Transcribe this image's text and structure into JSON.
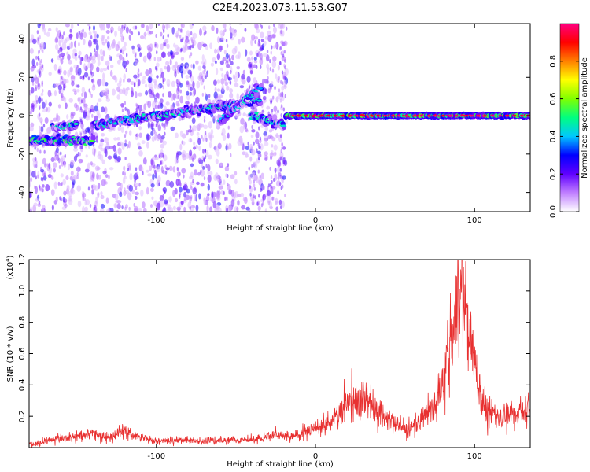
{
  "figure": {
    "title": "C2E4.2023.073.11.53.G07"
  },
  "chart_data": [
    {
      "type": "heatmap",
      "xlabel": "Height of straight line (km)",
      "ylabel": "Frequency (Hz)",
      "xlim": [
        -180,
        135
      ],
      "ylim": [
        -50,
        48
      ],
      "x_ticks": [
        -100,
        0,
        100
      ],
      "y_ticks": [
        -40,
        -20,
        0,
        20,
        40
      ],
      "colorbar": {
        "label": "Normalized spectral amplitude",
        "range": [
          0.0,
          1.0
        ],
        "ticks": [
          0.0,
          0.2,
          0.4,
          0.6,
          0.8
        ],
        "colormap": [
          "#ffffff",
          "#c07fff",
          "#6000ff",
          "#0000ff",
          "#00c8ff",
          "#00ff80",
          "#80ff00",
          "#ffff00",
          "#ff8000",
          "#ff0000",
          "#ff0080"
        ]
      },
      "ridges": [
        {
          "x0": -180,
          "y0": -13,
          "x1": -140,
          "y1": -13,
          "amplitude": 0.5
        },
        {
          "x0": -165,
          "y0": -6,
          "x1": -150,
          "y1": -5,
          "amplitude": 0.45
        },
        {
          "x0": -140,
          "y0": -5,
          "x1": -35,
          "y1": 8,
          "amplitude": 0.45
        },
        {
          "x0": -60,
          "y0": -3,
          "x1": -35,
          "y1": 15,
          "amplitude": 0.4
        },
        {
          "x0": -40,
          "y0": 0,
          "x1": -20,
          "y1": -5,
          "amplitude": 0.45
        },
        {
          "x0": -18,
          "y0": 0,
          "x1": 135,
          "y1": 0,
          "amplitude": 0.95
        }
      ]
    },
    {
      "type": "line",
      "xlabel": "Height of straight line (km)",
      "ylabel": "SNR (10 * v/v)",
      "y_multiplier": "(x10",
      "y_multiplier_exp": "4",
      "y_multiplier_close": ")",
      "xlim": [
        -180,
        135
      ],
      "ylim": [
        0.0,
        1.2
      ],
      "x_ticks": [
        -100,
        0,
        100
      ],
      "y_ticks": [
        0.2,
        0.4,
        0.6,
        0.8,
        1.0,
        1.2
      ],
      "color": "#e83030",
      "series": [
        {
          "x": [
            -180,
            -170,
            -160,
            -150,
            -140,
            -130,
            -122,
            -115,
            -105,
            -95,
            -85,
            -75,
            -65,
            -55,
            -45,
            -35,
            -25,
            -15,
            -5,
            0,
            5,
            10,
            15,
            20,
            25,
            30,
            35,
            40,
            45,
            50,
            55,
            60,
            65,
            70,
            75,
            80,
            84,
            87,
            90,
            92,
            95,
            98,
            101,
            104,
            107,
            110,
            115,
            120,
            125,
            130,
            135
          ],
          "y": [
            0.02,
            0.04,
            0.06,
            0.07,
            0.09,
            0.06,
            0.11,
            0.08,
            0.05,
            0.04,
            0.05,
            0.04,
            0.04,
            0.05,
            0.05,
            0.06,
            0.08,
            0.07,
            0.1,
            0.12,
            0.14,
            0.17,
            0.22,
            0.28,
            0.3,
            0.34,
            0.27,
            0.23,
            0.18,
            0.17,
            0.14,
            0.12,
            0.16,
            0.2,
            0.27,
            0.38,
            0.55,
            0.72,
            0.95,
            1.08,
            0.88,
            0.68,
            0.48,
            0.32,
            0.25,
            0.22,
            0.19,
            0.2,
            0.2,
            0.23,
            0.26
          ]
        }
      ]
    }
  ]
}
